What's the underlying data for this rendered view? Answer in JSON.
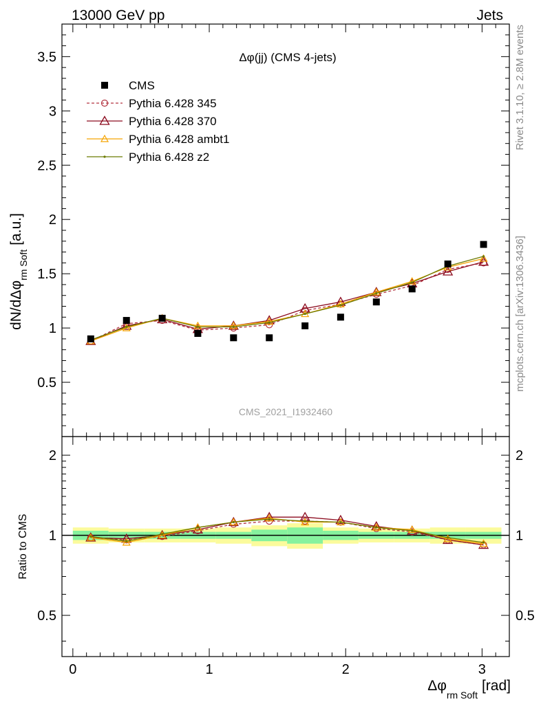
{
  "header": {
    "left": "13000 GeV pp",
    "right": "Jets"
  },
  "side": {
    "top": "Rivet 3.1.10, ≥ 2.8M events",
    "bottom": "mcplots.cern.ch [arXiv:1306.3436]"
  },
  "colors": {
    "cms": "#000000",
    "p345": "#b2323f",
    "p370": "#8b0a1e",
    "ambt1": "#f5a300",
    "z2": "#6b7a00",
    "band_inner": "#86f29e",
    "band_outer": "#fbfb9c",
    "watermark": "#a0a0a0"
  },
  "chart_data": [
    {
      "type": "scatter",
      "title": "Δφ(jj) (CMS 4-jets)",
      "ylabel_main": "dN/dΔφ",
      "ylabel_sub": "rm Soft",
      "ylabel_unit": "[a.u.]",
      "watermark": "CMS_2021_I1932460",
      "xlim": [
        -0.08,
        3.2
      ],
      "ylim": [
        0,
        3.8
      ],
      "x": [
        0.131,
        0.393,
        0.655,
        0.916,
        1.178,
        1.44,
        1.702,
        1.963,
        2.225,
        2.487,
        2.749,
        3.011
      ],
      "y_ticks": [
        "0.5",
        "1",
        "1.5",
        "2",
        "2.5",
        "3",
        "3.5"
      ],
      "y_tick_values": [
        0.5,
        1,
        1.5,
        2,
        2.5,
        3,
        3.5
      ],
      "legend_position": "top-left",
      "series": [
        {
          "name": "CMS",
          "key": "cms",
          "style": "marker",
          "values": [
            0.9,
            1.07,
            1.09,
            0.95,
            0.91,
            0.91,
            1.02,
            1.1,
            1.24,
            1.36,
            1.59,
            1.77
          ]
        },
        {
          "name": "Pythia 6.428 345",
          "key": "p345",
          "style": "dashed-circle",
          "values": [
            0.88,
            1.04,
            1.07,
            0.98,
            1.0,
            1.03,
            1.16,
            1.22,
            1.31,
            1.39,
            1.54,
            1.6
          ]
        },
        {
          "name": "Pythia 6.428 370",
          "key": "p370",
          "style": "solid-triangle",
          "values": [
            0.88,
            1.02,
            1.08,
            0.99,
            1.02,
            1.07,
            1.18,
            1.24,
            1.33,
            1.41,
            1.52,
            1.61
          ]
        },
        {
          "name": "Pythia 6.428 ambt1",
          "key": "ambt1",
          "style": "solid-small-triangle",
          "values": [
            0.88,
            1.0,
            1.09,
            1.02,
            1.02,
            1.06,
            1.13,
            1.22,
            1.33,
            1.43,
            1.56,
            1.64
          ]
        },
        {
          "name": "Pythia 6.428 z2",
          "key": "z2",
          "style": "solid-dot",
          "values": [
            0.89,
            1.01,
            1.09,
            1.01,
            1.01,
            1.05,
            1.13,
            1.21,
            1.32,
            1.42,
            1.57,
            1.66
          ]
        }
      ]
    },
    {
      "type": "line",
      "ylabel": "Ratio to CMS",
      "xlabel_main": "Δφ",
      "xlabel_sub": "rm Soft",
      "xlabel_unit": "[rad]",
      "xlim": [
        -0.08,
        3.2
      ],
      "ylim_log": [
        0.35,
        2.35
      ],
      "x_ticks": [
        "0",
        "1",
        "2",
        "3"
      ],
      "x_tick_values": [
        0,
        1,
        2,
        3
      ],
      "y_ticks": [
        "0.5",
        "1",
        "2"
      ],
      "y_tick_values": [
        0.5,
        1,
        2
      ],
      "x": [
        0.131,
        0.393,
        0.655,
        0.916,
        1.178,
        1.44,
        1.702,
        1.963,
        2.225,
        2.487,
        2.749,
        3.011
      ],
      "band_edges": [
        0.0,
        0.262,
        0.524,
        0.785,
        1.047,
        1.309,
        1.571,
        1.833,
        2.094,
        2.356,
        2.618,
        2.88,
        3.142
      ],
      "band_inner": [
        0.04,
        0.03,
        0.03,
        0.03,
        0.03,
        0.05,
        0.07,
        0.04,
        0.03,
        0.03,
        0.03,
        0.03
      ],
      "band_outer": [
        0.07,
        0.06,
        0.06,
        0.06,
        0.07,
        0.09,
        0.11,
        0.07,
        0.06,
        0.06,
        0.07,
        0.07
      ],
      "series": [
        {
          "name": "Pythia 6.428 345",
          "key": "p345",
          "style": "dashed-circle",
          "values": [
            0.98,
            0.96,
            0.99,
            1.04,
            1.1,
            1.13,
            1.13,
            1.12,
            1.06,
            1.03,
            0.96,
            0.92
          ]
        },
        {
          "name": "Pythia 6.428 370",
          "key": "p370",
          "style": "solid-triangle",
          "values": [
            0.98,
            0.97,
            1.0,
            1.05,
            1.12,
            1.17,
            1.17,
            1.14,
            1.08,
            1.04,
            0.96,
            0.92
          ]
        },
        {
          "name": "Pythia 6.428 ambt1",
          "key": "ambt1",
          "style": "solid-small-triangle",
          "values": [
            0.98,
            0.94,
            1.0,
            1.07,
            1.12,
            1.16,
            1.12,
            1.12,
            1.07,
            1.05,
            0.97,
            0.93
          ]
        },
        {
          "name": "Pythia 6.428 z2",
          "key": "z2",
          "style": "solid-dot",
          "values": [
            0.99,
            0.95,
            1.01,
            1.07,
            1.12,
            1.15,
            1.13,
            1.12,
            1.07,
            1.04,
            0.98,
            0.94
          ]
        }
      ]
    }
  ]
}
